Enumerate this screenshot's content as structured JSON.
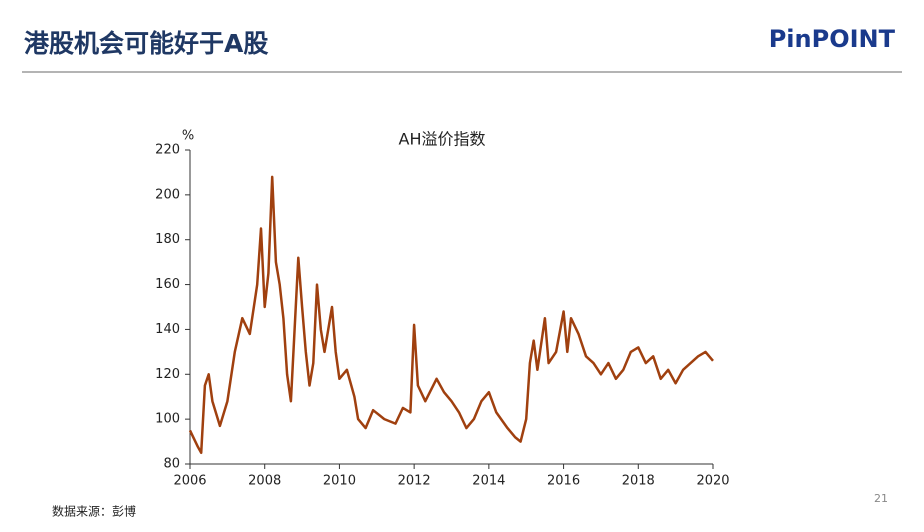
{
  "header": {
    "title": "港股机会可能好于A股",
    "logo": "PinPOINT"
  },
  "chart_data": {
    "type": "line",
    "title": "AH溢价指数",
    "y_unit": "%",
    "x": [
      2006.0,
      2006.2,
      2006.3,
      2006.4,
      2006.5,
      2006.6,
      2006.8,
      2007.0,
      2007.2,
      2007.4,
      2007.6,
      2007.8,
      2007.9,
      2008.0,
      2008.1,
      2008.2,
      2008.3,
      2008.4,
      2008.5,
      2008.6,
      2008.7,
      2008.8,
      2008.9,
      2009.0,
      2009.1,
      2009.2,
      2009.3,
      2009.4,
      2009.5,
      2009.6,
      2009.8,
      2009.9,
      2010.0,
      2010.2,
      2010.4,
      2010.5,
      2010.7,
      2010.9,
      2011.2,
      2011.5,
      2011.7,
      2011.9,
      2012.0,
      2012.1,
      2012.3,
      2012.6,
      2012.8,
      2013.0,
      2013.2,
      2013.4,
      2013.6,
      2013.8,
      2014.0,
      2014.2,
      2014.5,
      2014.7,
      2014.85,
      2015.0,
      2015.1,
      2015.2,
      2015.3,
      2015.5,
      2015.6,
      2015.8,
      2016.0,
      2016.1,
      2016.2,
      2016.4,
      2016.6,
      2016.8,
      2017.0,
      2017.2,
      2017.4,
      2017.6,
      2017.8,
      2018.0,
      2018.2,
      2018.4,
      2018.6,
      2018.8,
      2019.0,
      2019.2,
      2019.4,
      2019.6,
      2019.8,
      2020.0
    ],
    "values": [
      95,
      88,
      85,
      115,
      120,
      108,
      97,
      108,
      130,
      145,
      138,
      160,
      185,
      150,
      165,
      208,
      170,
      160,
      145,
      120,
      108,
      140,
      172,
      150,
      130,
      115,
      125,
      160,
      140,
      130,
      150,
      130,
      118,
      122,
      110,
      100,
      96,
      104,
      100,
      98,
      105,
      103,
      142,
      115,
      108,
      118,
      112,
      108,
      103,
      96,
      100,
      108,
      112,
      103,
      96,
      92,
      90,
      100,
      125,
      135,
      122,
      145,
      125,
      130,
      148,
      130,
      145,
      138,
      128,
      125,
      120,
      125,
      118,
      122,
      130,
      132,
      125,
      128,
      118,
      122,
      116,
      122,
      125,
      128,
      130,
      126
    ],
    "color": "#a0400f",
    "xlim": [
      2006,
      2020
    ],
    "xticks": [
      2006,
      2008,
      2010,
      2012,
      2014,
      2016,
      2018,
      2020
    ],
    "ylim": [
      80,
      220
    ],
    "yticks": [
      80,
      100,
      120,
      140,
      160,
      180,
      200,
      220
    ]
  },
  "footer": {
    "source": "数据来源：彭博",
    "page": "21"
  }
}
